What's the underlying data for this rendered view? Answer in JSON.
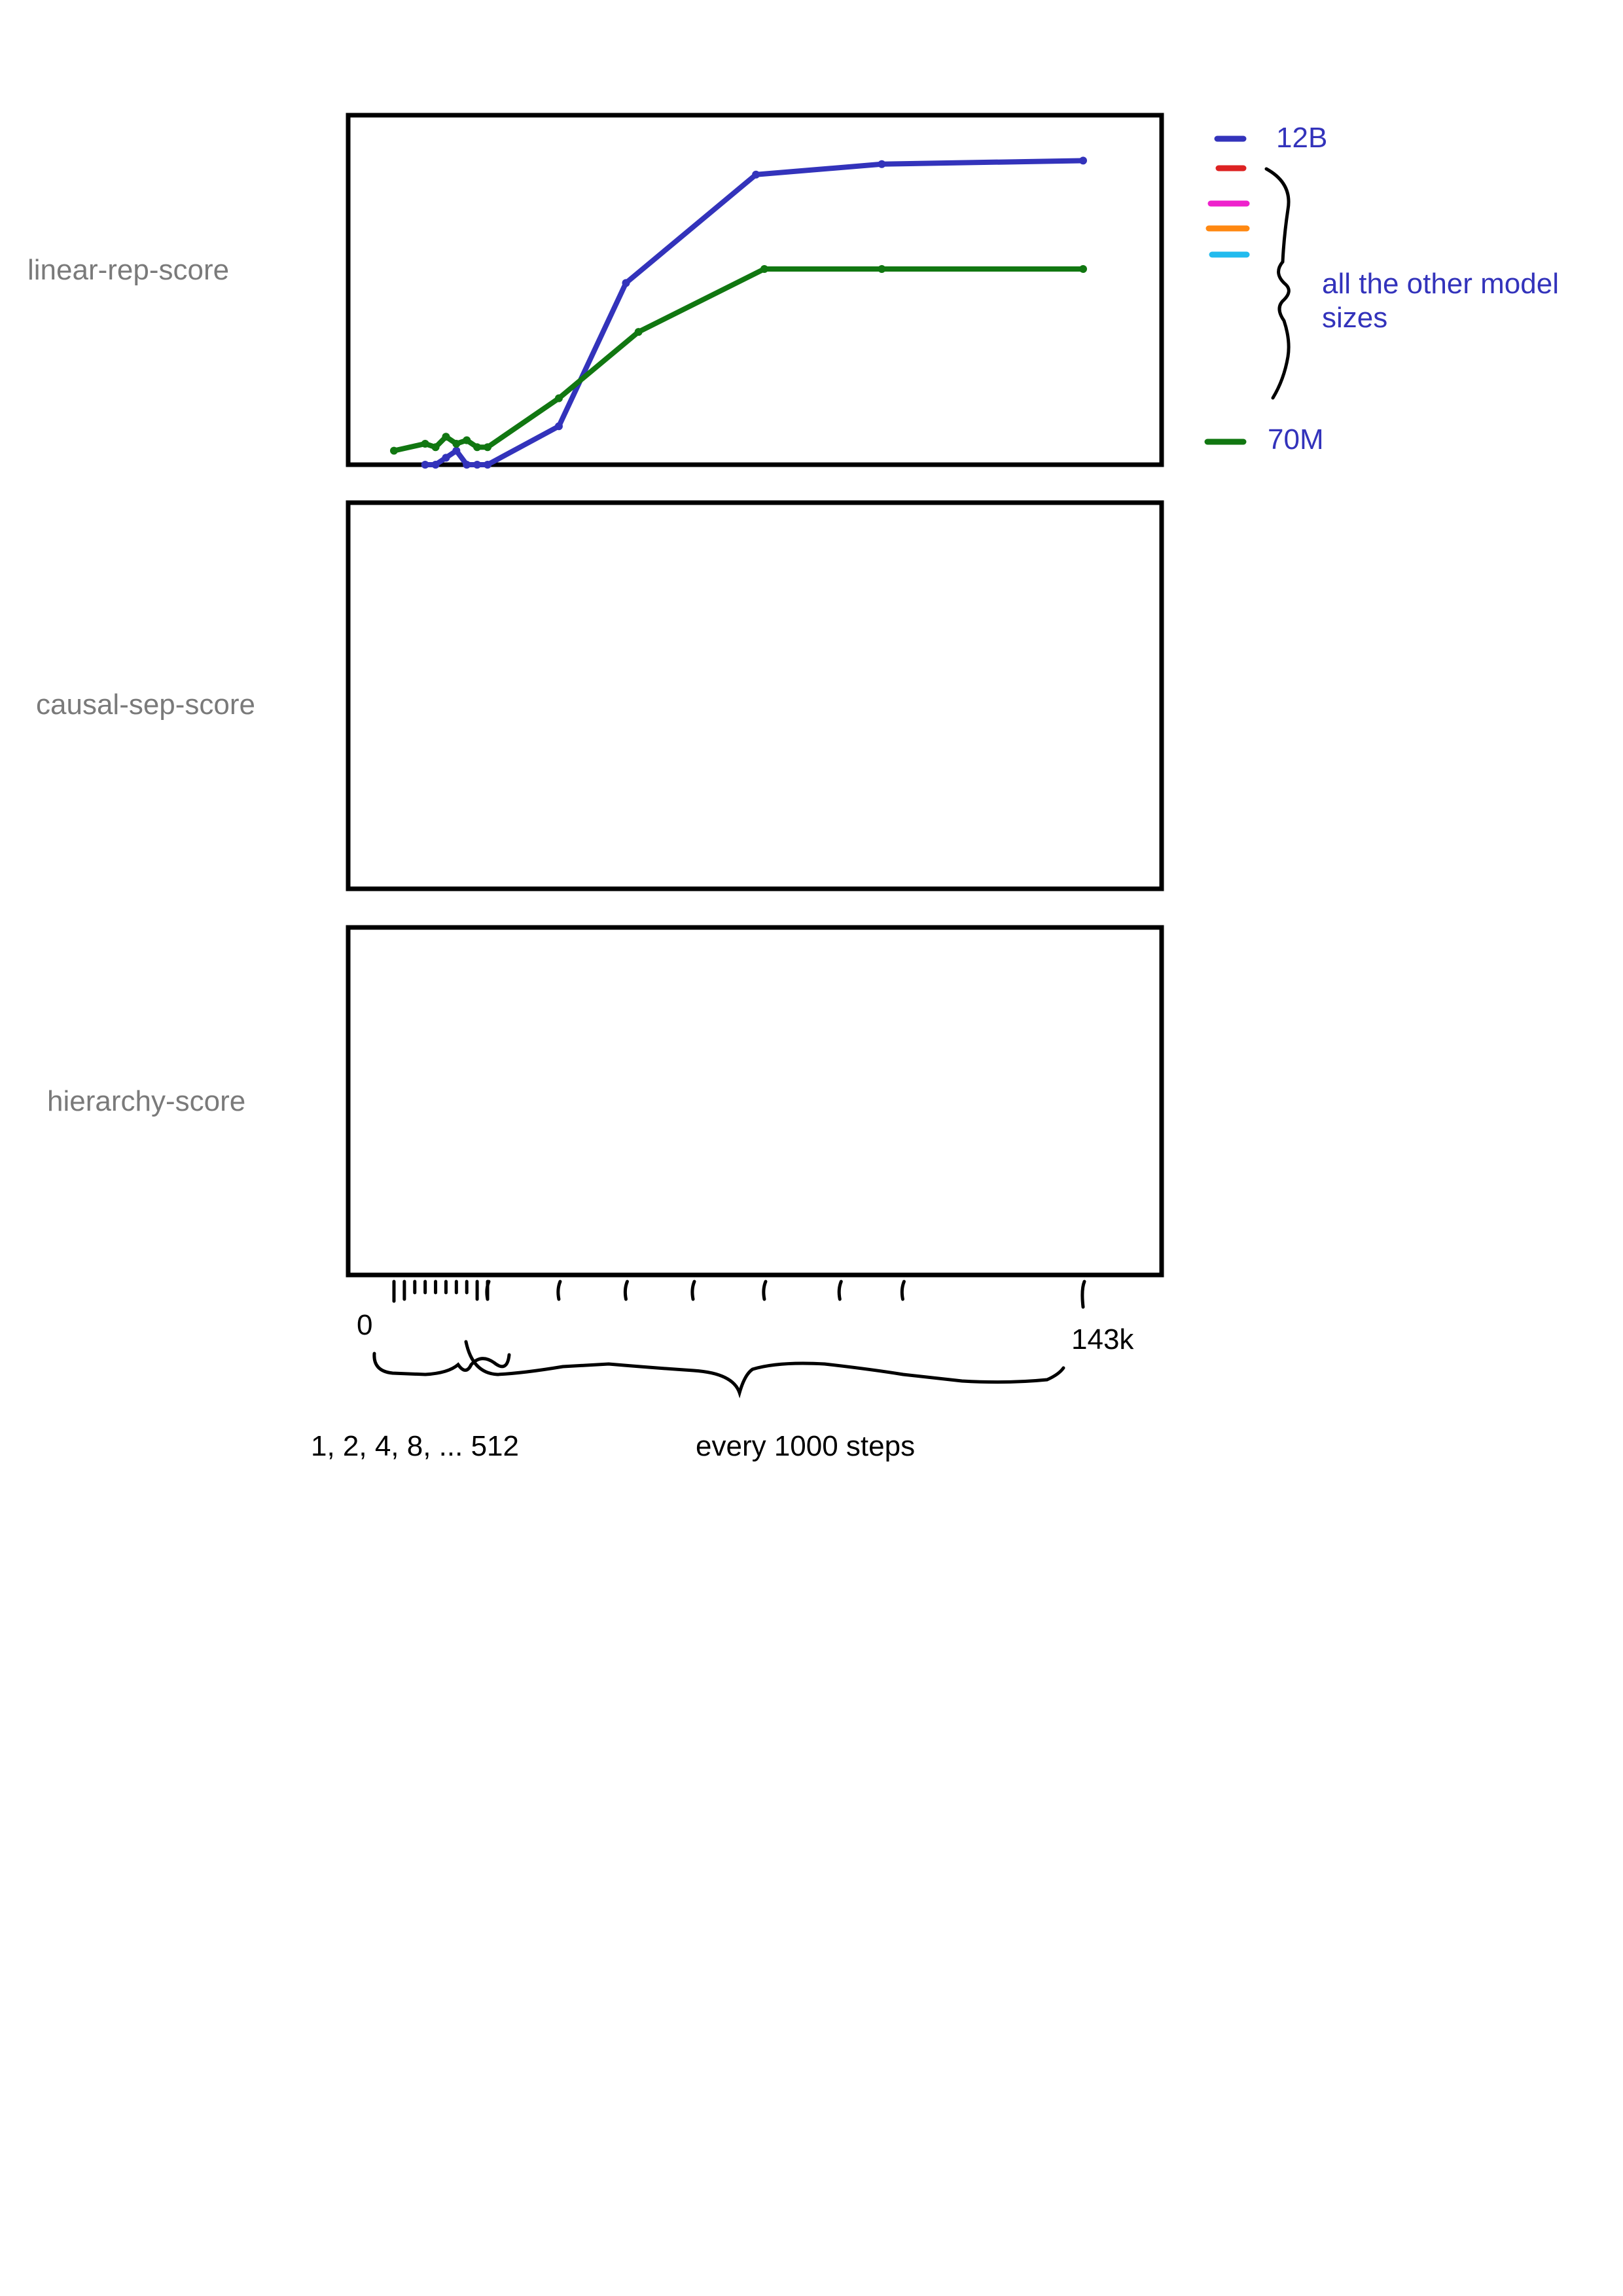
{
  "chart_data": {
    "type": "line",
    "panels": [
      {
        "ylabel": "linear-rep-score",
        "series": [
          {
            "name": "12B",
            "color": "#3333bb",
            "x": [
              8,
              16,
              32,
              64,
              128,
              256,
              512,
              18000,
              34000,
              65000,
              95000,
              143000
            ],
            "y": [
              0.0,
              0.0,
              0.02,
              0.04,
              0.0,
              0.0,
              0.0,
              0.11,
              0.52,
              0.83,
              0.86,
              0.87
            ]
          },
          {
            "name": "70M",
            "color": "#117711",
            "x": [
              1,
              8,
              16,
              32,
              64,
              128,
              256,
              512,
              18000,
              37000,
              67000,
              95000,
              143000
            ],
            "y": [
              0.04,
              0.06,
              0.05,
              0.08,
              0.06,
              0.07,
              0.05,
              0.05,
              0.19,
              0.38,
              0.56,
              0.56,
              0.56
            ]
          }
        ]
      },
      {
        "ylabel": "causal-sep-score",
        "series": []
      },
      {
        "ylabel": "hierarchy-score",
        "series": []
      }
    ],
    "x_ticks": {
      "first": "0",
      "last": "143k"
    },
    "annotations": {
      "early_steps": "1, 2, 4, 8, ... 512",
      "later_steps": "every 1000 steps"
    },
    "legend": {
      "placement": "right",
      "top_label": "12B",
      "bottom_label": "70M",
      "brace_label": "all the other model sizes",
      "swatches": [
        "#3333bb",
        "#dd2222",
        "#ee22cc",
        "#ff8811",
        "#22bbee",
        "#117711"
      ]
    }
  }
}
